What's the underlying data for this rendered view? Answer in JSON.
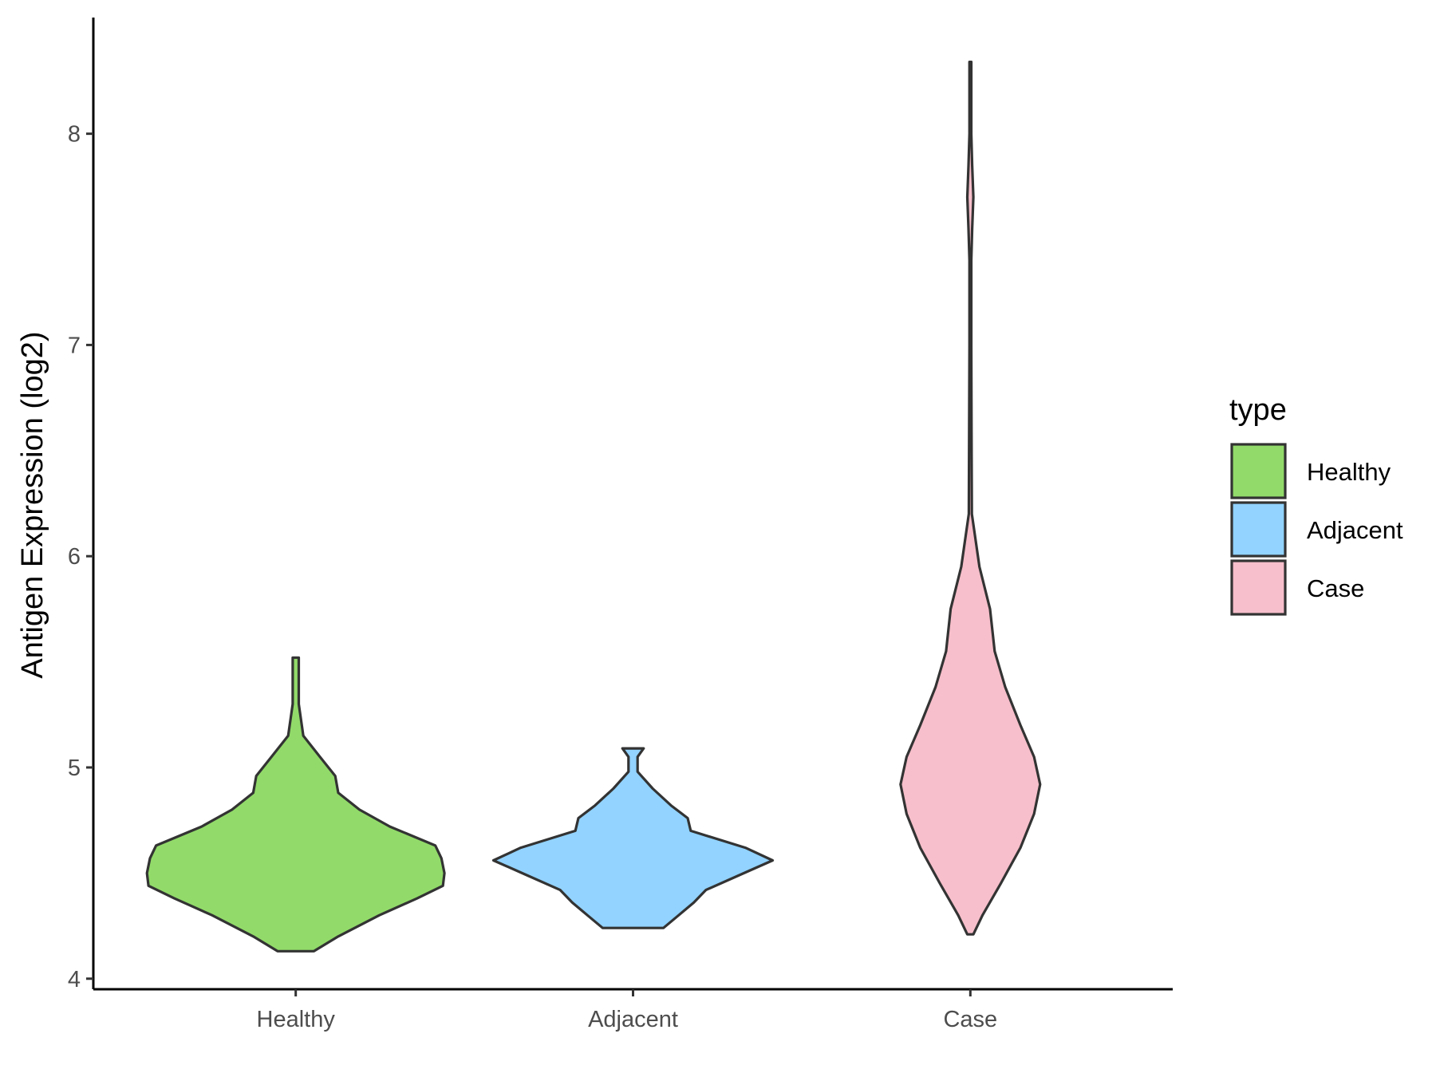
{
  "chart_data": {
    "type": "violin",
    "ylabel": "Antigen Expression (log2)",
    "xlabel": "",
    "ylim": [
      3.95,
      8.55
    ],
    "yticks": [
      4,
      5,
      6,
      7,
      8
    ],
    "categories": [
      "Healthy",
      "Adjacent",
      "Case"
    ],
    "legend": {
      "title": "type",
      "position": "right",
      "entries": [
        {
          "label": "Healthy",
          "color": "#92DB6A"
        },
        {
          "label": "Adjacent",
          "color": "#92D3FF"
        },
        {
          "label": "Case",
          "color": "#F7BFCB"
        }
      ]
    },
    "outline_color": "#333333",
    "series": [
      {
        "name": "Healthy",
        "color": "#92DB6A",
        "min": 4.13,
        "max": 5.52,
        "density": [
          [
            4.13,
            0.12
          ],
          [
            4.2,
            0.28
          ],
          [
            4.3,
            0.55
          ],
          [
            4.38,
            0.8
          ],
          [
            4.44,
            0.97
          ],
          [
            4.5,
            0.98
          ],
          [
            4.57,
            0.96
          ],
          [
            4.63,
            0.92
          ],
          [
            4.72,
            0.62
          ],
          [
            4.8,
            0.42
          ],
          [
            4.88,
            0.28
          ],
          [
            4.96,
            0.26
          ],
          [
            5.05,
            0.16
          ],
          [
            5.15,
            0.05
          ],
          [
            5.3,
            0.02
          ],
          [
            5.45,
            0.02
          ],
          [
            5.52,
            0.02
          ]
        ]
      },
      {
        "name": "Adjacent",
        "color": "#92D3FF",
        "min": 4.24,
        "max": 5.09,
        "density": [
          [
            4.24,
            0.2
          ],
          [
            4.3,
            0.3
          ],
          [
            4.36,
            0.4
          ],
          [
            4.42,
            0.48
          ],
          [
            4.49,
            0.7
          ],
          [
            4.56,
            0.92
          ],
          [
            4.62,
            0.74
          ],
          [
            4.7,
            0.38
          ],
          [
            4.76,
            0.36
          ],
          [
            4.82,
            0.25
          ],
          [
            4.9,
            0.13
          ],
          [
            4.98,
            0.03
          ],
          [
            5.05,
            0.03
          ],
          [
            5.09,
            0.07
          ]
        ]
      },
      {
        "name": "Case",
        "color": "#F7BFCB",
        "min": 4.21,
        "max": 8.34,
        "density": [
          [
            4.21,
            0.02
          ],
          [
            4.3,
            0.08
          ],
          [
            4.45,
            0.2
          ],
          [
            4.62,
            0.33
          ],
          [
            4.78,
            0.42
          ],
          [
            4.92,
            0.46
          ],
          [
            5.05,
            0.42
          ],
          [
            5.2,
            0.33
          ],
          [
            5.38,
            0.23
          ],
          [
            5.55,
            0.16
          ],
          [
            5.75,
            0.13
          ],
          [
            5.95,
            0.06
          ],
          [
            6.2,
            0.01
          ],
          [
            6.6,
            0.008
          ],
          [
            7.0,
            0.006
          ],
          [
            7.4,
            0.006
          ],
          [
            7.55,
            0.012
          ],
          [
            7.7,
            0.02
          ],
          [
            7.85,
            0.012
          ],
          [
            8.0,
            0.006
          ],
          [
            8.34,
            0.006
          ]
        ]
      }
    ]
  }
}
